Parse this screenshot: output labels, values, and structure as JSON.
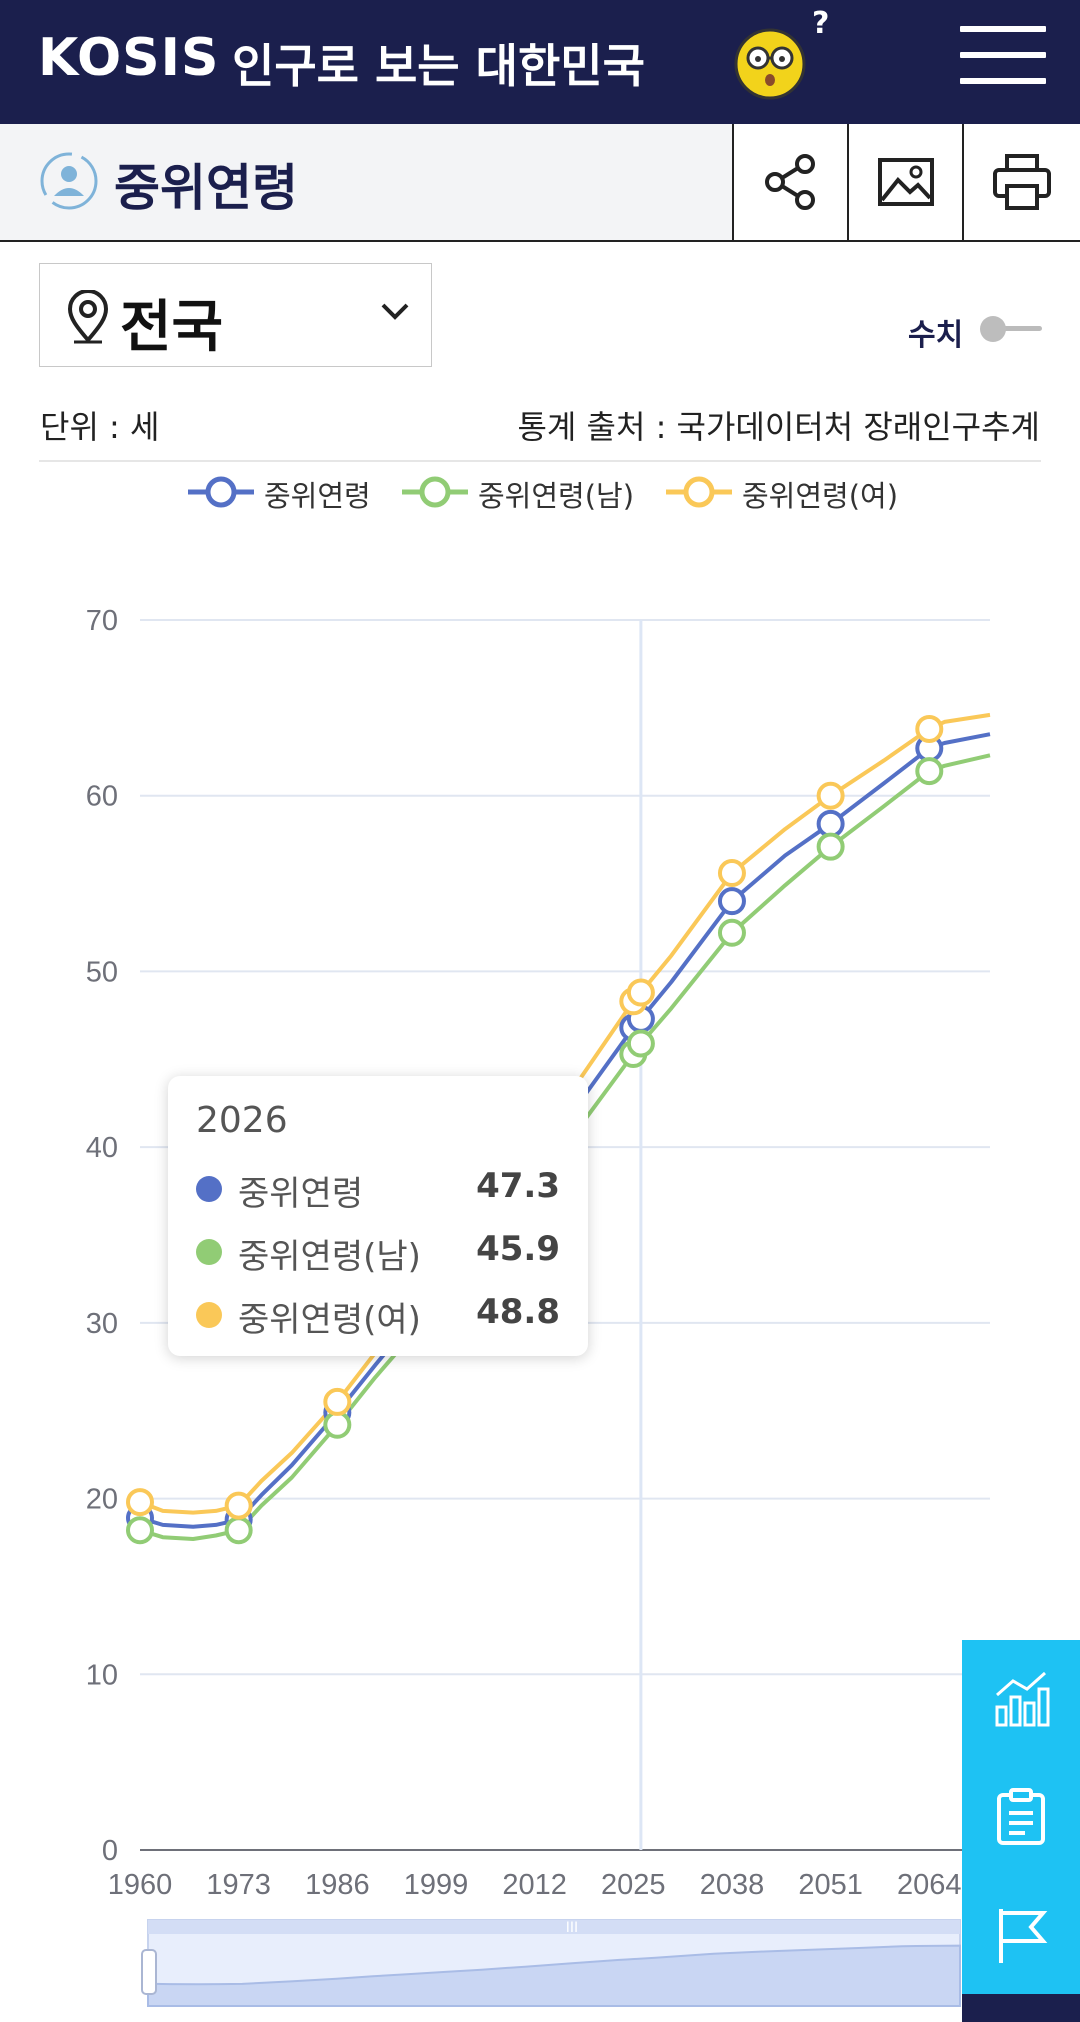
{
  "header": {
    "brand": "KOSIS",
    "slogan": "인구로 보는 대한민국",
    "help_mark": "?"
  },
  "subheader": {
    "title": "중위연령"
  },
  "region_select": {
    "label": "전국"
  },
  "value_toggle": {
    "label": "수치",
    "on": false
  },
  "info": {
    "unit": "단위 : 세",
    "source": "통계 출처 : 국가데이터처 장래인구추계"
  },
  "tooltip": {
    "title": "2026",
    "rows": [
      {
        "name": "중위연령",
        "value": "47.3",
        "color": "#5470c6"
      },
      {
        "name": "중위연령(남)",
        "value": "45.9",
        "color": "#91cc75"
      },
      {
        "name": "중위연령(여)",
        "value": "48.8",
        "color": "#fac858"
      }
    ]
  },
  "colors": {
    "header_bg": "#1b1f4d",
    "series_total": "#5470c6",
    "series_male": "#91cc75",
    "series_female": "#fac858",
    "side_button": "#1ec2f3"
  },
  "chart_data": {
    "type": "line",
    "title": "",
    "xlabel": "",
    "ylabel": "",
    "ylim": [
      0,
      70
    ],
    "y_ticks": [
      0,
      10,
      20,
      30,
      40,
      50,
      60,
      70
    ],
    "x_ticks": [
      "1960",
      "1973",
      "1986",
      "1999",
      "2012",
      "2025",
      "2038",
      "2051",
      "2064"
    ],
    "x_range": [
      1960,
      2072
    ],
    "grid": true,
    "legend_position": "top",
    "highlight_x": 2026,
    "series": [
      {
        "name": "중위연령",
        "color": "#5470c6",
        "x": [
          1960,
          1963,
          1967,
          1970,
          1973,
          1976,
          1980,
          1986,
          1991,
          1996,
          2001,
          2006,
          2012,
          2018,
          2025,
          2026,
          2030,
          2038,
          2045,
          2051,
          2058,
          2064,
          2066,
          2072
        ],
        "y": [
          18.9,
          18.5,
          18.4,
          18.5,
          18.8,
          20.2,
          21.9,
          24.9,
          27.6,
          30.2,
          32.8,
          35.4,
          38.8,
          42.6,
          46.8,
          47.3,
          49.4,
          54.0,
          56.6,
          58.4,
          60.7,
          62.7,
          63.0,
          63.5
        ],
        "markers": [
          1960,
          1973,
          1986,
          2025,
          2026,
          2038,
          2051,
          2064
        ]
      },
      {
        "name": "중위연령(남)",
        "color": "#91cc75",
        "x": [
          1960,
          1963,
          1967,
          1970,
          1973,
          1976,
          1980,
          1986,
          1991,
          1996,
          2001,
          2006,
          2012,
          2018,
          2025,
          2026,
          2030,
          2038,
          2045,
          2051,
          2058,
          2064,
          2066,
          2072
        ],
        "y": [
          18.2,
          17.8,
          17.7,
          17.9,
          18.2,
          19.6,
          21.2,
          24.2,
          26.9,
          29.4,
          31.9,
          34.4,
          37.6,
          41.2,
          45.3,
          45.9,
          47.9,
          52.2,
          54.9,
          57.1,
          59.4,
          61.4,
          61.7,
          62.3
        ],
        "markers": [
          1960,
          1973,
          1986,
          2025,
          2026,
          2038,
          2051,
          2064
        ]
      },
      {
        "name": "중위연령(여)",
        "color": "#fac858",
        "x": [
          1960,
          1963,
          1967,
          1970,
          1973,
          1976,
          1980,
          1986,
          1991,
          1996,
          2001,
          2006,
          2012,
          2018,
          2025,
          2026,
          2030,
          2038,
          2045,
          2051,
          2058,
          2064,
          2066,
          2072
        ],
        "y": [
          19.8,
          19.3,
          19.2,
          19.3,
          19.6,
          21.0,
          22.6,
          25.5,
          28.3,
          30.9,
          33.6,
          36.3,
          39.9,
          43.9,
          48.3,
          48.8,
          50.9,
          55.6,
          58.1,
          60.0,
          62.0,
          63.8,
          64.2,
          64.6
        ],
        "markers": [
          1960,
          1973,
          1986,
          2025,
          2026,
          2038,
          2051,
          2064
        ]
      }
    ]
  }
}
